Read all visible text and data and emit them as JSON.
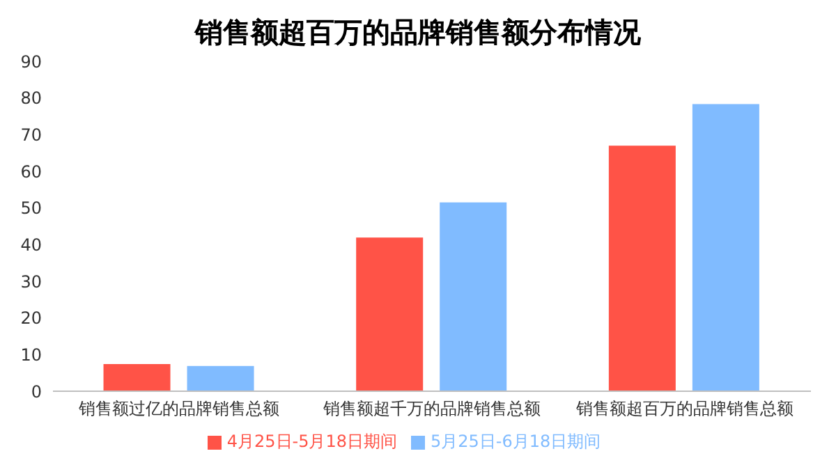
{
  "chart_data": {
    "type": "bar",
    "title": "销售额超百万的品牌销售额分布情况",
    "categories": [
      "销售额过亿的品牌销售总额",
      "销售额超千万的品牌销售总额",
      "销售额超百万的品牌销售总额"
    ],
    "series": [
      {
        "name": "4月25日-5月18日期间",
        "color": "#ff5347",
        "values": [
          7.4,
          41.9,
          67
        ]
      },
      {
        "name": "5月25日-6月18日期间",
        "color": "#80bbff",
        "values": [
          6.9,
          51.5,
          78.3
        ]
      }
    ],
    "ylim": [
      0,
      90
    ],
    "yticks": [
      0,
      10,
      20,
      30,
      40,
      50,
      60,
      70,
      80,
      90
    ],
    "grid": false,
    "legend": "bottom"
  }
}
